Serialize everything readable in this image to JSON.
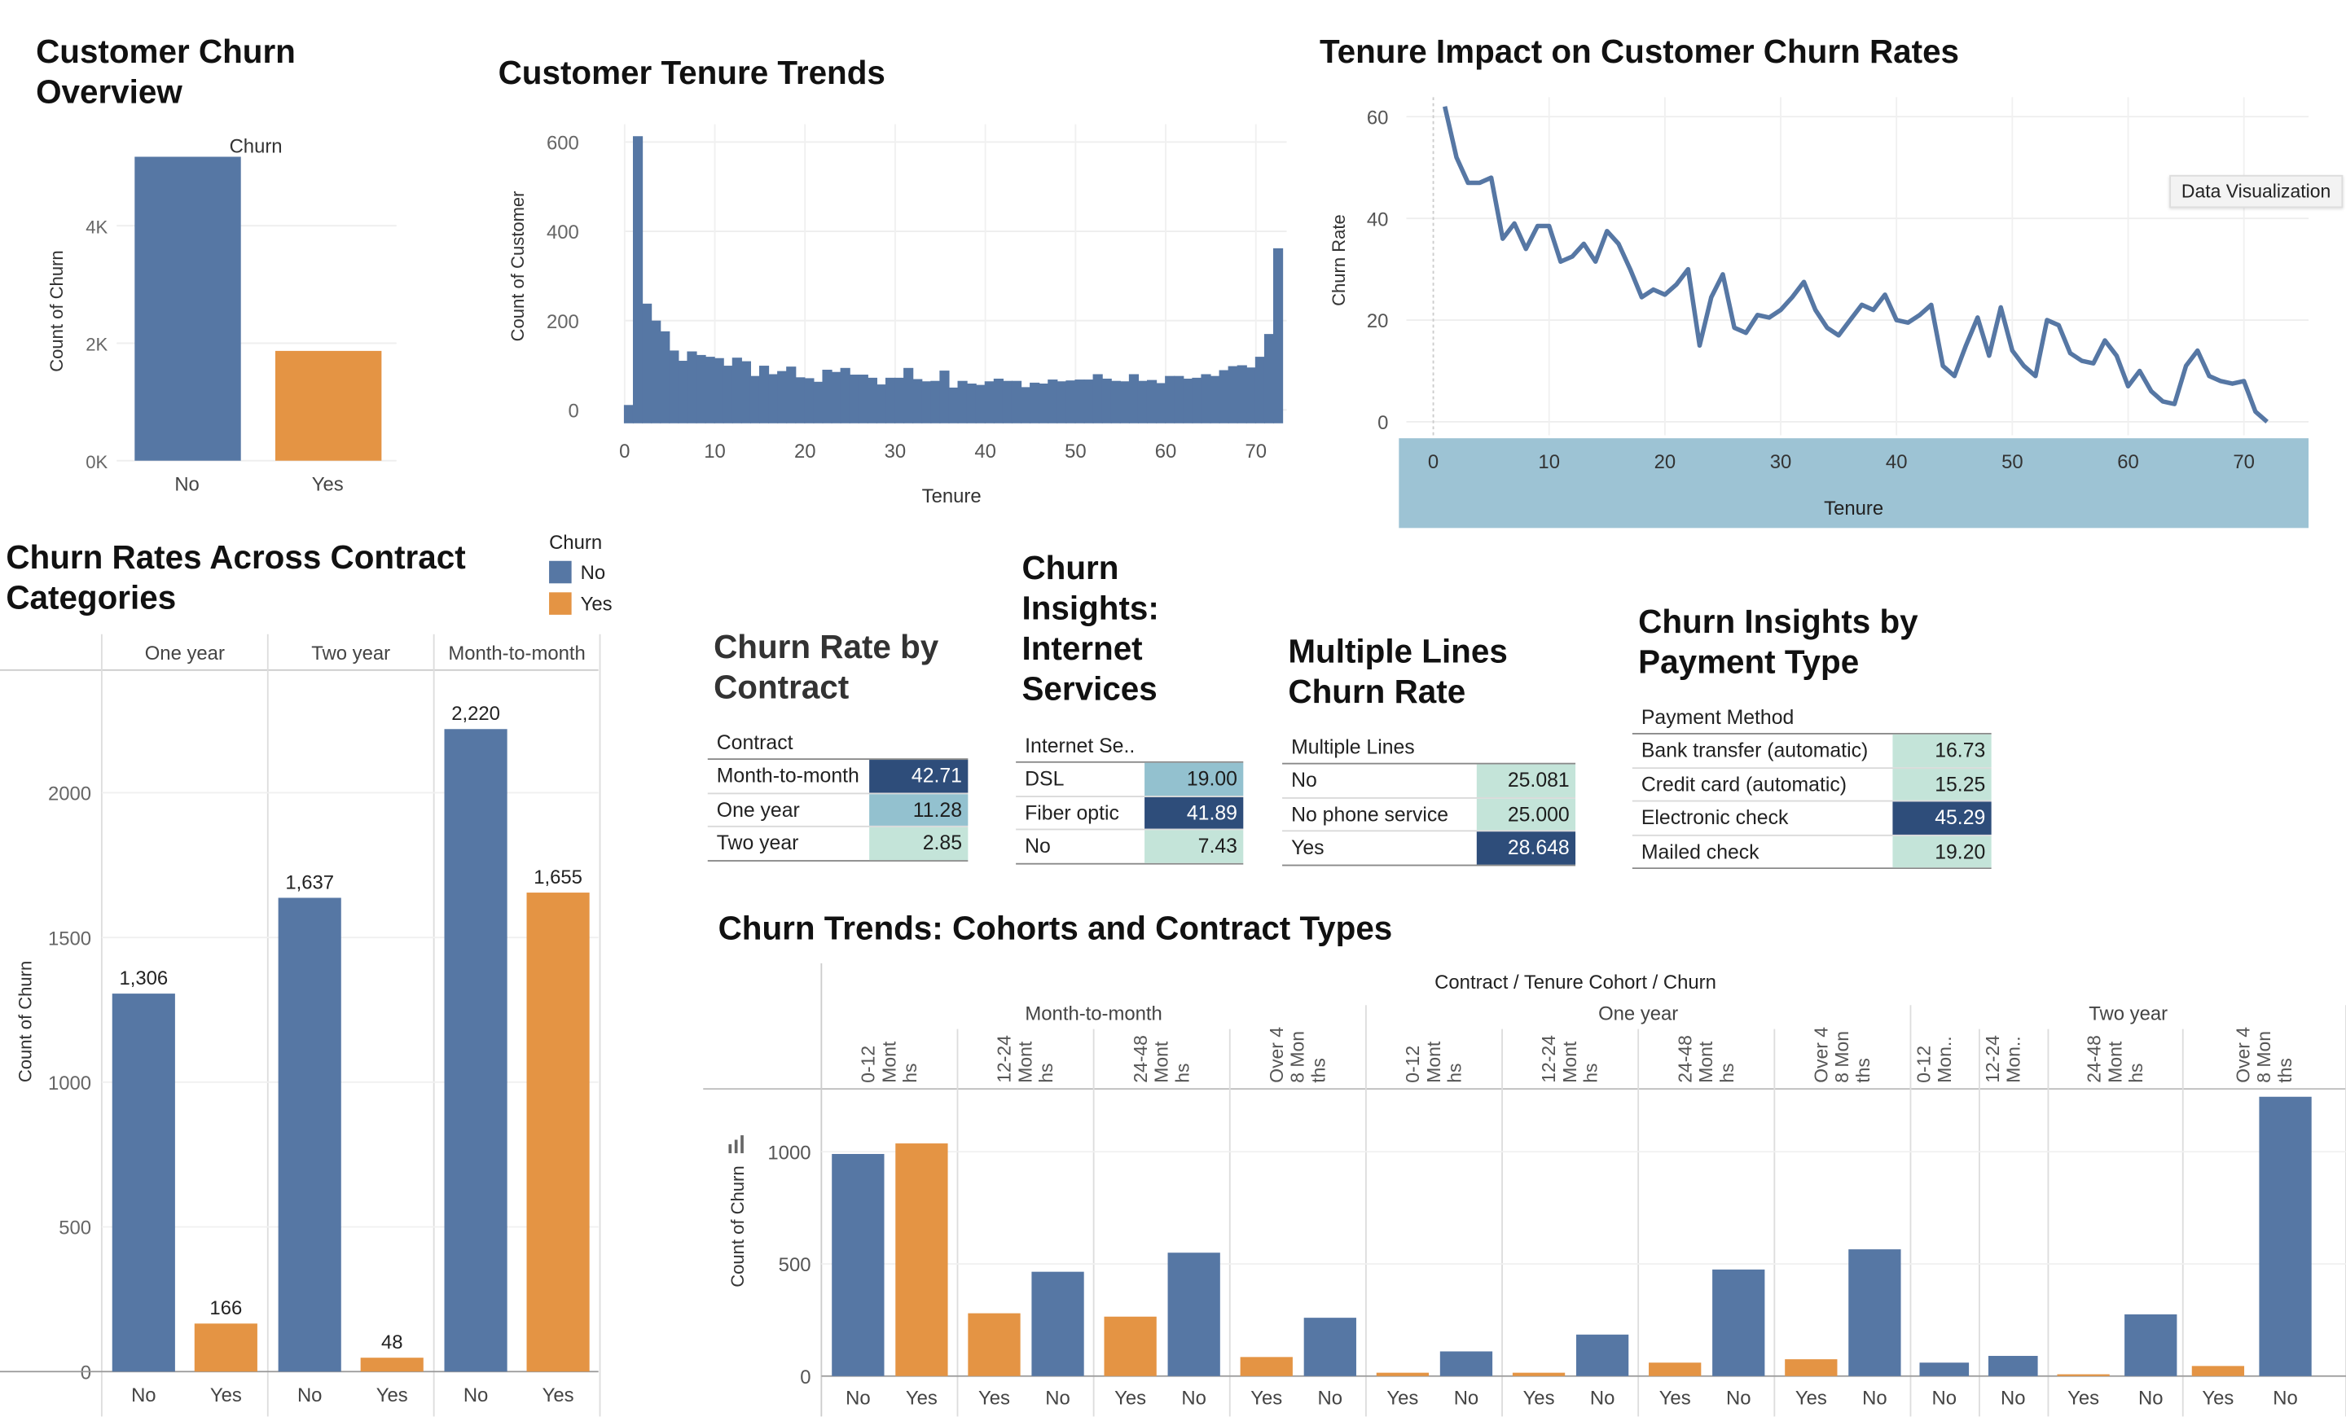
{
  "colors": {
    "no": "#5677a4",
    "yes": "#e49444",
    "axis_band": "#9dc3d4"
  },
  "tooltip": {
    "label": "Data Visualization"
  },
  "overview": {
    "title_line1": "Customer Churn",
    "title_line2": "Overview",
    "chart_data": {
      "type": "bar",
      "title": "Churn",
      "ylabel": "Count of Churn",
      "categories": [
        "No",
        "Yes"
      ],
      "values": [
        5174,
        1869
      ],
      "yticks": [
        "0K",
        "2K",
        "4K"
      ],
      "ylim": [
        0,
        5500
      ]
    }
  },
  "tenure_hist": {
    "title": "Customer Tenure Trends",
    "chart_data": {
      "type": "bar",
      "xlabel": "Tenure",
      "ylabel": "Count of Customer",
      "x": [
        0,
        1,
        2,
        3,
        4,
        5,
        6,
        7,
        8,
        9,
        10,
        11,
        12,
        13,
        14,
        15,
        16,
        17,
        18,
        19,
        20,
        21,
        22,
        23,
        24,
        25,
        26,
        27,
        28,
        29,
        30,
        31,
        32,
        33,
        34,
        35,
        36,
        37,
        38,
        39,
        40,
        41,
        42,
        43,
        44,
        45,
        46,
        47,
        48,
        49,
        50,
        51,
        52,
        53,
        54,
        55,
        56,
        57,
        58,
        59,
        60,
        61,
        62,
        63,
        64,
        65,
        66,
        67,
        68,
        69,
        70,
        71,
        72
      ],
      "values": [
        11,
        613,
        238,
        200,
        176,
        133,
        110,
        131,
        123,
        119,
        116,
        99,
        117,
        109,
        76,
        99,
        80,
        87,
        97,
        73,
        71,
        63,
        90,
        85,
        94,
        79,
        79,
        72,
        57,
        72,
        72,
        94,
        69,
        64,
        65,
        88,
        50,
        65,
        59,
        56,
        64,
        70,
        65,
        65,
        51,
        61,
        59,
        68,
        64,
        66,
        68,
        68,
        80,
        70,
        65,
        64,
        80,
        65,
        67,
        60,
        76,
        76,
        70,
        72,
        80,
        76,
        89,
        98,
        100,
        95,
        119,
        170,
        362
      ],
      "xticks": [
        "0",
        "10",
        "20",
        "30",
        "40",
        "50",
        "60",
        "70"
      ],
      "yticks": [
        "0",
        "200",
        "400",
        "600"
      ],
      "xlim": [
        0,
        73
      ],
      "ylim": [
        -30,
        640
      ]
    }
  },
  "tenure_rate": {
    "title": "Tenure Impact on Customer Churn Rates",
    "chart_data": {
      "type": "line",
      "xlabel": "Tenure",
      "ylabel": "Churn Rate",
      "x": [
        1,
        2,
        3,
        4,
        5,
        6,
        7,
        8,
        9,
        10,
        11,
        12,
        13,
        14,
        15,
        16,
        17,
        18,
        19,
        20,
        21,
        22,
        23,
        24,
        25,
        26,
        27,
        28,
        29,
        30,
        31,
        32,
        33,
        34,
        35,
        36,
        37,
        38,
        39,
        40,
        41,
        42,
        43,
        44,
        45,
        46,
        47,
        48,
        49,
        50,
        51,
        52,
        53,
        54,
        55,
        56,
        57,
        58,
        59,
        60,
        61,
        62,
        63,
        64,
        65,
        66,
        67,
        68,
        69,
        70,
        71,
        72
      ],
      "values": [
        62,
        52,
        47,
        47,
        48,
        36,
        39,
        34,
        38.5,
        38.5,
        31.5,
        32.5,
        35,
        31.5,
        37.5,
        35,
        30,
        24.5,
        26,
        25,
        27,
        30,
        15,
        24.5,
        29,
        18.5,
        17.5,
        21,
        20.5,
        22,
        24.5,
        27.5,
        22,
        18.5,
        17,
        20,
        23,
        22,
        25,
        20,
        19.5,
        21,
        23,
        11,
        9,
        15,
        20.5,
        13,
        22.5,
        14,
        11,
        9,
        20,
        19,
        13.5,
        12,
        11.5,
        16,
        13,
        7,
        10,
        6,
        4,
        3.5,
        11,
        14,
        9,
        8,
        7.5,
        8,
        2,
        0
      ],
      "xticks": [
        "0",
        "10",
        "20",
        "30",
        "40",
        "50",
        "60",
        "70"
      ],
      "yticks": [
        "0",
        "20",
        "40",
        "60"
      ],
      "xlim": [
        -2,
        76
      ],
      "ylim": [
        0,
        64
      ]
    }
  },
  "contract_bars": {
    "title_line1": "Churn Rates Across Contract",
    "title_line2": "Categories",
    "legend": {
      "title": "Churn",
      "items": [
        "No",
        "Yes"
      ]
    },
    "chart_data": {
      "type": "bar",
      "ylabel": "Count of Churn",
      "groups": [
        "One year",
        "Two year",
        "Month-to-month"
      ],
      "categories": [
        "No",
        "Yes"
      ],
      "series": [
        {
          "name": "No",
          "values": [
            1306,
            1637,
            2220
          ]
        },
        {
          "name": "Yes",
          "values": [
            166,
            48,
            1655
          ]
        }
      ],
      "labels": [
        [
          "1,306",
          "166"
        ],
        [
          "1,637",
          "48"
        ],
        [
          "2,220",
          "1,655"
        ]
      ],
      "yticks": [
        "0",
        "500",
        "1000",
        "1500",
        "2000"
      ],
      "ylim": [
        0,
        2300
      ]
    }
  },
  "tables": {
    "contract": {
      "title_line1": "Churn Rate by",
      "title_line2": "Contract",
      "header": "Contract",
      "rows": [
        {
          "label": "Month-to-month",
          "value": "42.71",
          "shade": "dark"
        },
        {
          "label": "One year",
          "value": "11.28",
          "shade": "mid"
        },
        {
          "label": "Two year",
          "value": "2.85",
          "shade": "light"
        }
      ]
    },
    "internet": {
      "title_line1": "Churn",
      "title_line2": "Insights:",
      "title_line3": "Internet",
      "title_line4": "Services",
      "header": "Internet Se..",
      "rows": [
        {
          "label": "DSL",
          "value": "19.00",
          "shade": "mid"
        },
        {
          "label": "Fiber optic",
          "value": "41.89",
          "shade": "dark"
        },
        {
          "label": "No",
          "value": "7.43",
          "shade": "light"
        }
      ]
    },
    "lines": {
      "title_line1": "Multiple Lines",
      "title_line2": "Churn Rate",
      "header": "Multiple Lines",
      "rows": [
        {
          "label": "No",
          "value": "25.081",
          "shade": "light"
        },
        {
          "label": "No phone service",
          "value": "25.000",
          "shade": "light"
        },
        {
          "label": "Yes",
          "value": "28.648",
          "shade": "dark"
        }
      ]
    },
    "payment": {
      "title_line1": "Churn Insights by",
      "title_line2": "Payment Type",
      "header": "Payment Method",
      "rows": [
        {
          "label": "Bank transfer (automatic)",
          "value": "16.73",
          "shade": "light"
        },
        {
          "label": "Credit card (automatic)",
          "value": "15.25",
          "shade": "light"
        },
        {
          "label": "Electronic check",
          "value": "45.29",
          "shade": "dark"
        },
        {
          "label": "Mailed check",
          "value": "19.20",
          "shade": "light"
        }
      ]
    }
  },
  "cohorts": {
    "title": "Churn Trends: Cohorts and Contract Types",
    "chart_data": {
      "type": "bar",
      "header": "Contract / Tenure Cohort / Churn",
      "ylabel": "Count of Churn",
      "yticks": [
        "0",
        "500",
        "1000"
      ],
      "ylim": [
        0,
        1250
      ],
      "contracts": [
        "Month-to-month",
        "One year",
        "Two year"
      ],
      "cohort_labels": [
        [
          "0-12",
          "Mont",
          "hs"
        ],
        [
          "12-24",
          "Mont",
          "hs"
        ],
        [
          "24-48",
          "Mont",
          "hs"
        ],
        [
          "Over 4",
          "8 Mon",
          "ths"
        ],
        [
          "0-12",
          "Mont",
          "hs"
        ],
        [
          "12-24",
          "Mont",
          "hs"
        ],
        [
          "24-48",
          "Mont",
          "hs"
        ],
        [
          "Over 4",
          "8 Mon",
          "ths"
        ],
        [
          "0-12",
          "Mon..",
          ""
        ],
        [
          "12-24",
          "Mon..",
          ""
        ],
        [
          "24-48",
          "Mont",
          "hs"
        ],
        [
          "Over 4",
          "8 Mon",
          "ths"
        ]
      ],
      "bars": [
        {
          "label": "No",
          "value": 990
        },
        {
          "label": "Yes",
          "value": 1037
        },
        {
          "label": "Yes",
          "value": 280
        },
        {
          "label": "No",
          "value": 465
        },
        {
          "label": "Yes",
          "value": 265
        },
        {
          "label": "No",
          "value": 550
        },
        {
          "label": "Yes",
          "value": 85
        },
        {
          "label": "No",
          "value": 260
        },
        {
          "label": "Yes",
          "value": 15
        },
        {
          "label": "No",
          "value": 110
        },
        {
          "label": "Yes",
          "value": 15
        },
        {
          "label": "No",
          "value": 185
        },
        {
          "label": "Yes",
          "value": 60
        },
        {
          "label": "No",
          "value": 475
        },
        {
          "label": "Yes",
          "value": 75
        },
        {
          "label": "No",
          "value": 565
        },
        {
          "label": "No",
          "value": 60
        },
        {
          "label": "No",
          "value": 90
        },
        {
          "label": "Yes",
          "value": 8
        },
        {
          "label": "No",
          "value": 275
        },
        {
          "label": "Yes",
          "value": 45
        },
        {
          "label": "No",
          "value": 1245
        }
      ]
    }
  }
}
